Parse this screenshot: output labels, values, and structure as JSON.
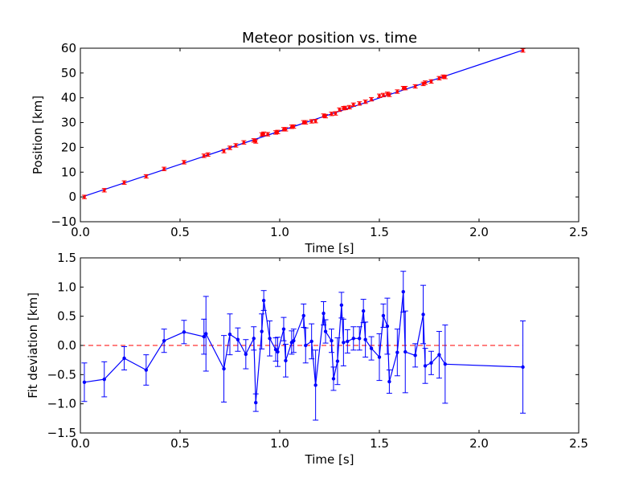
{
  "chart_data": [
    {
      "type": "scatter",
      "title": "Meteor position vs. time",
      "xlabel": "Time [s]",
      "ylabel": "Position [km]",
      "xlim": [
        0.0,
        2.5
      ],
      "ylim": [
        -10,
        60
      ],
      "xticks": [
        "0.0",
        "0.5",
        "1.0",
        "1.5",
        "2.0",
        "2.5"
      ],
      "yticks": [
        "−10",
        "0",
        "10",
        "20",
        "30",
        "40",
        "50",
        "60"
      ],
      "grid": false,
      "series": [
        {
          "style": "points-with-errorbars",
          "color": "#ff0000",
          "x": [
            0.02,
            0.12,
            0.22,
            0.33,
            0.42,
            0.52,
            0.62,
            0.64,
            0.72,
            0.75,
            0.78,
            0.82,
            0.87,
            0.88,
            0.91,
            0.92,
            0.94,
            0.98,
            0.99,
            1.02,
            1.03,
            1.06,
            1.07,
            1.12,
            1.13,
            1.16,
            1.18,
            1.22,
            1.23,
            1.26,
            1.28,
            1.3,
            1.32,
            1.33,
            1.35,
            1.37,
            1.4,
            1.43,
            1.46,
            1.5,
            1.52,
            1.54,
            1.55,
            1.59,
            1.62,
            1.63,
            1.68,
            1.72,
            1.73,
            1.76,
            1.8,
            1.82,
            1.83,
            2.22
          ],
          "y": [
            0.0,
            2.7,
            5.8,
            8.3,
            11.3,
            14.0,
            16.6,
            17.1,
            18.5,
            19.8,
            20.8,
            22.0,
            22.8,
            22.4,
            25.2,
            25.5,
            25.3,
            26.0,
            26.2,
            27.3,
            27.3,
            28.3,
            28.4,
            30.1,
            30.1,
            30.5,
            30.6,
            32.8,
            32.6,
            33.5,
            33.7,
            35.2,
            35.8,
            35.9,
            36.2,
            37.2,
            37.7,
            38.4,
            39.4,
            40.8,
            41.1,
            41.6,
            41.2,
            42.5,
            43.9,
            43.9,
            44.6,
            45.6,
            46.1,
            46.6,
            47.9,
            48.5,
            48.4,
            59.1
          ],
          "error": 0.7
        },
        {
          "style": "line",
          "color": "#0000ff",
          "x": [
            0.02,
            2.22
          ],
          "y": [
            0.3,
            59.2
          ]
        }
      ]
    },
    {
      "type": "line",
      "title": "",
      "xlabel": "Time [s]",
      "ylabel": "Fit deviation [km]",
      "xlim": [
        0.0,
        2.5
      ],
      "ylim": [
        -1.5,
        1.5
      ],
      "xticks": [
        "0.0",
        "0.5",
        "1.0",
        "1.5",
        "2.0",
        "2.5"
      ],
      "yticks": [
        "−1.5",
        "−1.0",
        "−0.5",
        "0.0",
        "0.5",
        "1.0",
        "1.5"
      ],
      "grid": false,
      "reference_line": {
        "y": 0.0,
        "color": "#ff0000",
        "style": "dashed"
      },
      "series": [
        {
          "style": "line-markers-errorbars",
          "color": "#0000ff",
          "x": [
            0.02,
            0.12,
            0.22,
            0.33,
            0.42,
            0.52,
            0.62,
            0.63,
            0.72,
            0.75,
            0.79,
            0.83,
            0.87,
            0.88,
            0.91,
            0.92,
            0.95,
            0.98,
            0.99,
            1.02,
            1.03,
            1.06,
            1.07,
            1.12,
            1.13,
            1.16,
            1.18,
            1.22,
            1.23,
            1.26,
            1.27,
            1.29,
            1.31,
            1.32,
            1.34,
            1.37,
            1.4,
            1.42,
            1.43,
            1.46,
            1.5,
            1.52,
            1.54,
            1.55,
            1.59,
            1.62,
            1.63,
            1.68,
            1.72,
            1.73,
            1.76,
            1.8,
            1.83,
            2.22
          ],
          "y": [
            -0.63,
            -0.58,
            -0.22,
            -0.42,
            0.08,
            0.23,
            0.15,
            0.2,
            -0.4,
            0.19,
            0.1,
            -0.15,
            0.12,
            -0.98,
            0.24,
            0.77,
            0.12,
            -0.07,
            -0.11,
            0.28,
            -0.26,
            0.05,
            0.08,
            0.51,
            0.0,
            0.07,
            -0.68,
            0.55,
            0.24,
            0.08,
            -0.57,
            -0.27,
            0.69,
            0.05,
            0.07,
            0.12,
            0.12,
            0.59,
            0.1,
            -0.05,
            -0.2,
            0.51,
            0.33,
            -0.62,
            -0.12,
            0.92,
            -0.11,
            -0.17,
            0.53,
            -0.35,
            -0.3,
            -0.16,
            -0.32,
            -0.37
          ],
          "error": [
            0.33,
            0.3,
            0.2,
            0.26,
            0.2,
            0.2,
            0.3,
            0.64,
            0.57,
            0.35,
            0.2,
            0.25,
            0.2,
            0.15,
            0.3,
            0.17,
            0.3,
            0.2,
            0.25,
            0.2,
            0.28,
            0.2,
            0.2,
            0.2,
            0.3,
            0.3,
            0.6,
            0.2,
            0.2,
            0.2,
            0.2,
            0.4,
            0.22,
            0.4,
            0.2,
            0.2,
            0.2,
            0.2,
            0.3,
            0.2,
            0.4,
            0.2,
            0.48,
            0.2,
            0.4,
            0.35,
            0.7,
            0.2,
            0.5,
            0.3,
            0.2,
            0.4,
            0.67,
            0.79
          ]
        }
      ]
    }
  ]
}
